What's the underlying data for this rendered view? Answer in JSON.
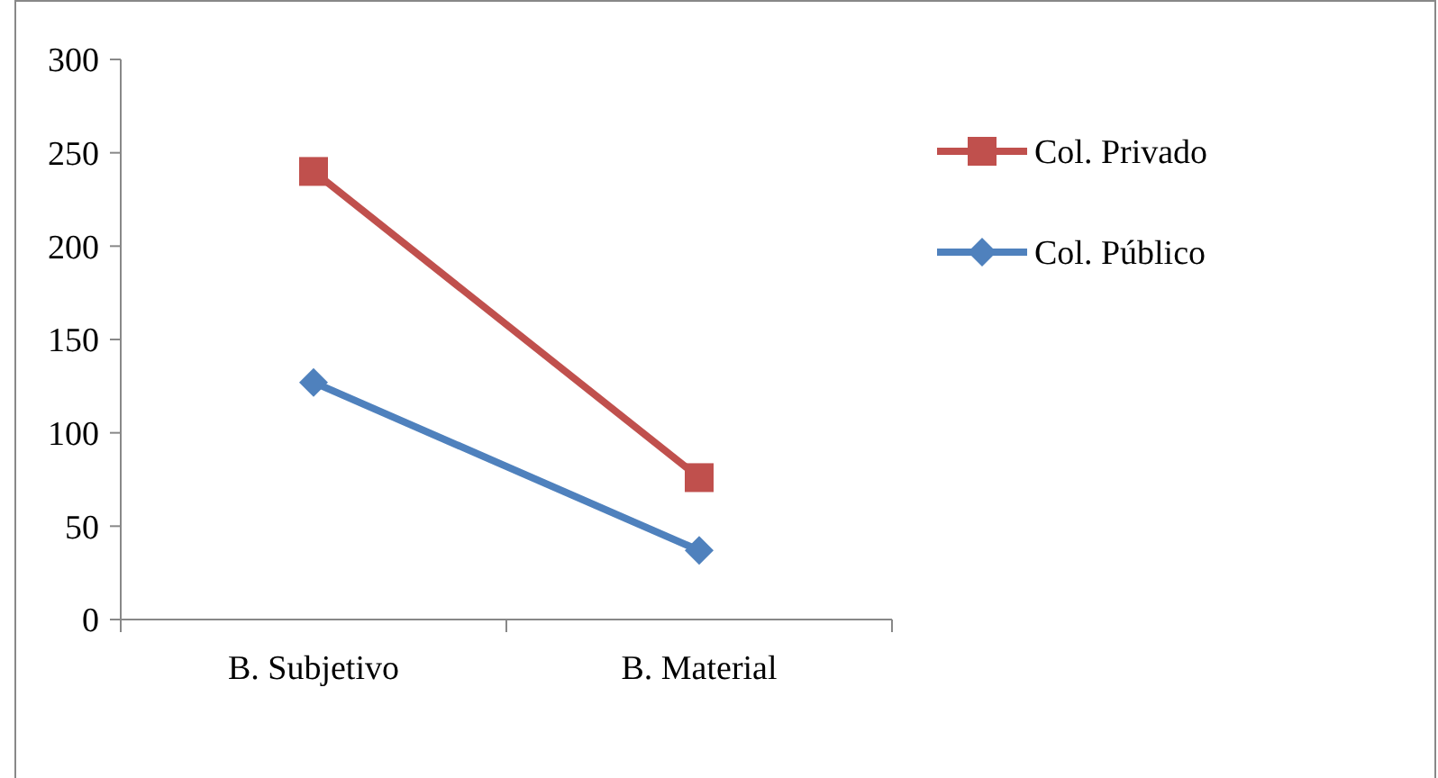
{
  "chart_data": {
    "type": "line",
    "categories": [
      "B. Subjetivo",
      "B. Material"
    ],
    "series": [
      {
        "name": "Col. Privado",
        "color": "#c0504d",
        "values": [
          240,
          76
        ],
        "marker": "square"
      },
      {
        "name": "Col. Público",
        "color": "#4f81bd",
        "values": [
          127,
          37
        ],
        "marker": "diamond"
      }
    ],
    "ylim": [
      0,
      300
    ],
    "yticks": [
      0,
      50,
      100,
      150,
      200,
      250,
      300
    ],
    "grid": false,
    "legend": "right"
  }
}
